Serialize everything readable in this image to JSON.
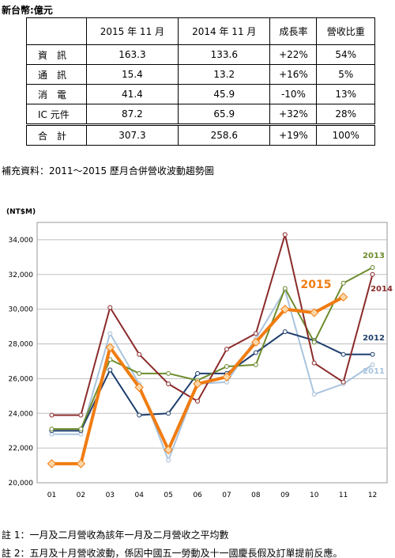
{
  "unit": "新台幣:億元",
  "table": {
    "header": [
      "2015 年 11 月",
      "2014 年 11 月",
      "成長率",
      "營收比重"
    ],
    "rows": [
      [
        "資　訊",
        "163.3",
        "133.6",
        "+22%",
        "54%"
      ],
      [
        "通　訊",
        "15.4",
        "13.2",
        "+16%",
        "5%"
      ],
      [
        "消　電",
        "41.4",
        "45.9",
        "-10%",
        "13%"
      ],
      [
        "IC 元件",
        "87.2",
        "65.9",
        "+32%",
        "28%"
      ],
      [
        "合　計",
        "307.3",
        "258.6",
        "+19%",
        "100%"
      ]
    ]
  },
  "supplement_title": "補充資料：2011～2015 歷月合併營收波動趨勢圖",
  "chart_data": {
    "type": "line",
    "y_label": "(NT$M)",
    "categories": [
      "01",
      "02",
      "03",
      "04",
      "05",
      "06",
      "07",
      "08",
      "09",
      "10",
      "11",
      "12"
    ],
    "ylim": [
      20000,
      35000
    ],
    "yticks": [
      {
        "value": 20000,
        "label": "20,000"
      },
      {
        "value": 22000,
        "label": "22,000"
      },
      {
        "value": 24000,
        "label": "24,000"
      },
      {
        "value": 26000,
        "label": "26,000"
      },
      {
        "value": 28000,
        "label": "28,000"
      },
      {
        "value": 30000,
        "label": "30,000"
      },
      {
        "value": 32000,
        "label": "32,000"
      },
      {
        "value": 34000,
        "label": "34,000"
      }
    ],
    "grid": true,
    "series": [
      {
        "name": "2011",
        "color": "#a9c4de",
        "values": [
          22800,
          22800,
          28600,
          25700,
          21300,
          25700,
          25800,
          28300,
          31100,
          25100,
          25700,
          26800
        ]
      },
      {
        "name": "2012",
        "color": "#1f3f6e",
        "values": [
          23000,
          23000,
          26500,
          23900,
          24000,
          26300,
          26300,
          27500,
          28700,
          28200,
          27400,
          27400
        ]
      },
      {
        "name": "2013",
        "color": "#6e8c2e",
        "values": [
          23100,
          23100,
          27100,
          26300,
          26300,
          25900,
          26700,
          26800,
          31200,
          28100,
          31500,
          32400
        ]
      },
      {
        "name": "2014",
        "color": "#8b2a2a",
        "values": [
          23900,
          23900,
          30100,
          27400,
          25700,
          24700,
          27700,
          28600,
          34300,
          26900,
          25800,
          32000
        ]
      },
      {
        "name": "2015",
        "color": "#f07c12",
        "values": [
          21100,
          21100,
          27800,
          25500,
          21900,
          25700,
          26100,
          28100,
          30000,
          29800,
          30700,
          null
        ]
      }
    ]
  },
  "notes": [
    "註 1：一月及二月營收為該年一月及二月營收之平均數",
    "註 2：五月及十月營收波動，係因中國五一勞動及十一國慶長假及訂單提前反應。"
  ]
}
